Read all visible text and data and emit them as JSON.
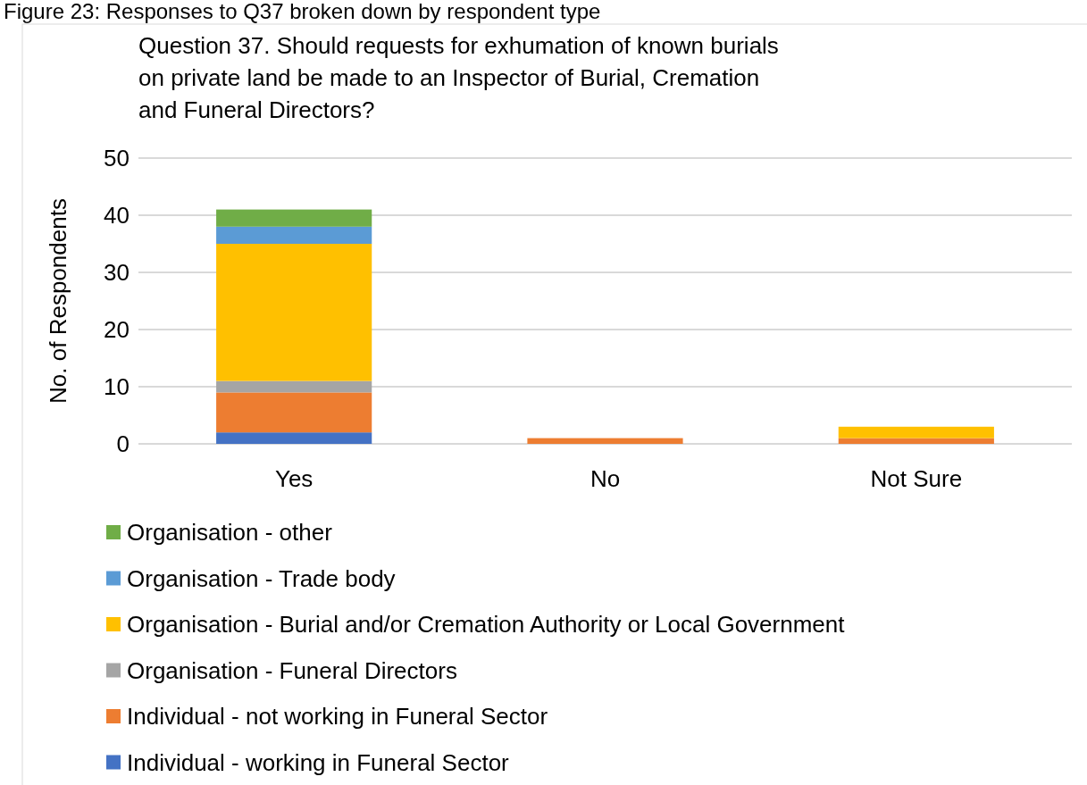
{
  "chart_data": {
    "type": "bar",
    "title": "Question 37. Should requests for exhumation of known burials on private land be made to an Inspector of Burial, Cremation and Funeral Directors?",
    "annotations": [
      "Figure 23: Responses to Q37 broken down by respondent type"
    ],
    "ylabel": "No. of Respondents",
    "categories": [
      "Yes",
      "No",
      "Not Sure"
    ],
    "stacked": true,
    "series": [
      {
        "name": "Individual - working in Funeral Sector",
        "color": "#4472c4",
        "values": [
          2,
          0,
          0
        ]
      },
      {
        "name": "Individual - not working in Funeral Sector",
        "color": "#ed7d31",
        "values": [
          7,
          1,
          1
        ]
      },
      {
        "name": "Organisation - Funeral Directors",
        "color": "#a5a5a5",
        "values": [
          2,
          0,
          0
        ]
      },
      {
        "name": "Organisation - Burial and/or Cremation Authority or Local Government",
        "color": "#ffc000",
        "values": [
          24,
          0,
          2
        ]
      },
      {
        "name": "Organisation - Trade body",
        "color": "#5b9bd5",
        "values": [
          3,
          0,
          0
        ]
      },
      {
        "name": "Organisation - other",
        "color": "#70ad47",
        "values": [
          3,
          0,
          0
        ]
      }
    ],
    "ylim": [
      0,
      50
    ],
    "yticks": [
      0,
      10,
      20,
      30,
      40,
      50
    ],
    "grid": "y",
    "legend": "bottom"
  }
}
